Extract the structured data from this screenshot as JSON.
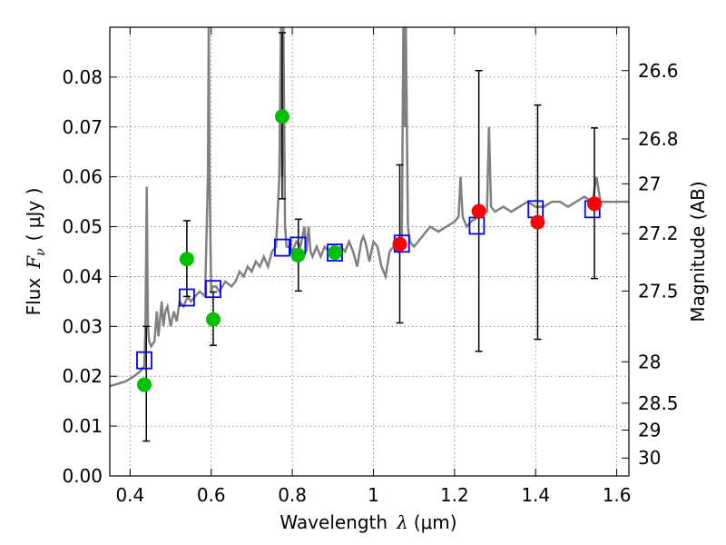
{
  "chart_data": {
    "type": "scatter",
    "xlabel_prefix": "Wavelength",
    "xlabel_symbol": "λ",
    "xlabel_unit": "(μm)",
    "ylabel_prefix": "Flux",
    "ylabel_symbol": "F",
    "ylabel_sub": "ν",
    "ylabel_unit": "( μJy )",
    "y2label": "Magnitude (AB)",
    "xlim": [
      0.35,
      1.63
    ],
    "ylim": [
      0.0,
      0.09
    ],
    "x_ticks": [
      {
        "value": 0.4,
        "label": "0.4"
      },
      {
        "value": 0.6,
        "label": "0.6"
      },
      {
        "value": 0.8,
        "label": "0.8"
      },
      {
        "value": 1.0,
        "label": "1"
      },
      {
        "value": 1.2,
        "label": "1.2"
      },
      {
        "value": 1.4,
        "label": "1.4"
      },
      {
        "value": 1.6,
        "label": "1.6"
      }
    ],
    "y_ticks": [
      {
        "value": 0.0,
        "label": "0.00"
      },
      {
        "value": 0.01,
        "label": "0.01"
      },
      {
        "value": 0.02,
        "label": "0.02"
      },
      {
        "value": 0.03,
        "label": "0.03"
      },
      {
        "value": 0.04,
        "label": "0.04"
      },
      {
        "value": 0.05,
        "label": "0.05"
      },
      {
        "value": 0.06,
        "label": "0.06"
      },
      {
        "value": 0.07,
        "label": "0.07"
      },
      {
        "value": 0.08,
        "label": "0.08"
      }
    ],
    "mag_ticks": [
      {
        "flux": 0.0813,
        "label": "26.6"
      },
      {
        "flux": 0.0676,
        "label": "26.8"
      },
      {
        "flux": 0.0586,
        "label": "27"
      },
      {
        "flux": 0.0486,
        "label": "27.2"
      },
      {
        "flux": 0.0371,
        "label": "27.5"
      },
      {
        "flux": 0.0229,
        "label": "28"
      },
      {
        "flux": 0.0146,
        "label": "28.5"
      },
      {
        "flux": 0.0092,
        "label": "29"
      },
      {
        "flux": 0.0036,
        "label": "30"
      }
    ],
    "sed_color": "#808080",
    "sed_spectrum": {
      "x": [
        0.35,
        0.37,
        0.39,
        0.41,
        0.425,
        0.435,
        0.438,
        0.441,
        0.444,
        0.447,
        0.452,
        0.46,
        0.466,
        0.47,
        0.478,
        0.482,
        0.487,
        0.492,
        0.5,
        0.508,
        0.515,
        0.522,
        0.532,
        0.542,
        0.55,
        0.56,
        0.572,
        0.585,
        0.592,
        0.594,
        0.596,
        0.6,
        0.604,
        0.612,
        0.62,
        0.635,
        0.65,
        0.66,
        0.67,
        0.68,
        0.69,
        0.7,
        0.71,
        0.72,
        0.73,
        0.74,
        0.75,
        0.76,
        0.768,
        0.772,
        0.775,
        0.778,
        0.782,
        0.786,
        0.79,
        0.8,
        0.81,
        0.82,
        0.83,
        0.835,
        0.84,
        0.845,
        0.85,
        0.86,
        0.87,
        0.88,
        0.89,
        0.9,
        0.91,
        0.92,
        0.93,
        0.94,
        0.95,
        0.96,
        0.97,
        0.975,
        0.98,
        0.985,
        0.99,
        1.0,
        1.01,
        1.02,
        1.03,
        1.04,
        1.05,
        1.06,
        1.07,
        1.074,
        1.077,
        1.08,
        1.085,
        1.09,
        1.1,
        1.12,
        1.14,
        1.16,
        1.18,
        1.2,
        1.21,
        1.215,
        1.22,
        1.23,
        1.24,
        1.26,
        1.27,
        1.28,
        1.285,
        1.29,
        1.3,
        1.32,
        1.34,
        1.36,
        1.38,
        1.4,
        1.42,
        1.44,
        1.46,
        1.48,
        1.5,
        1.52,
        1.54,
        1.55,
        1.56,
        1.58,
        1.6,
        1.63
      ],
      "y": [
        0.018,
        0.0185,
        0.019,
        0.02,
        0.021,
        0.022,
        0.03,
        0.058,
        0.03,
        0.027,
        0.026,
        0.027,
        0.033,
        0.028,
        0.035,
        0.03,
        0.033,
        0.034,
        0.03,
        0.033,
        0.031,
        0.035,
        0.034,
        0.036,
        0.035,
        0.036,
        0.037,
        0.036,
        0.06,
        0.09,
        0.06,
        0.037,
        0.038,
        0.038,
        0.037,
        0.039,
        0.038,
        0.039,
        0.041,
        0.04,
        0.042,
        0.041,
        0.043,
        0.042,
        0.044,
        0.042,
        0.045,
        0.046,
        0.06,
        0.09,
        0.06,
        0.09,
        0.05,
        0.046,
        0.046,
        0.045,
        0.047,
        0.046,
        0.05,
        0.045,
        0.05,
        0.045,
        0.044,
        0.046,
        0.044,
        0.046,
        0.045,
        0.046,
        0.045,
        0.046,
        0.045,
        0.047,
        0.045,
        0.042,
        0.047,
        0.048,
        0.047,
        0.045,
        0.043,
        0.047,
        0.046,
        0.042,
        0.04,
        0.045,
        0.046,
        0.045,
        0.048,
        0.09,
        0.07,
        0.09,
        0.05,
        0.047,
        0.046,
        0.048,
        0.05,
        0.049,
        0.05,
        0.051,
        0.052,
        0.06,
        0.052,
        0.05,
        0.051,
        0.052,
        0.053,
        0.053,
        0.07,
        0.054,
        0.053,
        0.054,
        0.053,
        0.054,
        0.055,
        0.054,
        0.054,
        0.055,
        0.055,
        0.054,
        0.055,
        0.056,
        0.055,
        0.06,
        0.055,
        0.055,
        0.055,
        0.055
      ]
    },
    "series": [
      {
        "name": "model_boxes",
        "marker": "square",
        "color": "#0000ff",
        "points": [
          {
            "x": 0.435,
            "y": 0.0232
          },
          {
            "x": 0.54,
            "y": 0.0358
          },
          {
            "x": 0.605,
            "y": 0.0375
          },
          {
            "x": 0.775,
            "y": 0.0458
          },
          {
            "x": 0.814,
            "y": 0.0462
          },
          {
            "x": 0.905,
            "y": 0.0448
          },
          {
            "x": 1.07,
            "y": 0.0466
          },
          {
            "x": 1.255,
            "y": 0.0502
          },
          {
            "x": 1.4,
            "y": 0.0535
          },
          {
            "x": 1.54,
            "y": 0.0535
          }
        ]
      },
      {
        "name": "observed_optical",
        "marker": "circle",
        "color": "#00c000",
        "points": [
          {
            "x": 0.435,
            "y": 0.0183
          },
          {
            "x": 0.54,
            "y": 0.0435
          },
          {
            "x": 0.605,
            "y": 0.0314
          },
          {
            "x": 0.775,
            "y": 0.0721
          },
          {
            "x": 0.814,
            "y": 0.0443
          },
          {
            "x": 0.905,
            "y": 0.0448
          }
        ]
      },
      {
        "name": "observed_nir",
        "marker": "circle",
        "color": "#ff0000",
        "points": [
          {
            "x": 1.065,
            "y": 0.0465
          },
          {
            "x": 1.26,
            "y": 0.0531
          },
          {
            "x": 1.405,
            "y": 0.0509
          },
          {
            "x": 1.545,
            "y": 0.0546
          }
        ]
      }
    ],
    "error_bars": [
      {
        "x": 0.44,
        "low": 0.007,
        "high": 0.03
      },
      {
        "x": 0.54,
        "low": 0.036,
        "high": 0.0512
      },
      {
        "x": 0.605,
        "low": 0.0262,
        "high": 0.0369
      },
      {
        "x": 0.775,
        "low": 0.0556,
        "high": 0.0889
      },
      {
        "x": 0.815,
        "low": 0.0371,
        "high": 0.0515
      },
      {
        "x": 1.065,
        "low": 0.0307,
        "high": 0.0624
      },
      {
        "x": 1.26,
        "low": 0.025,
        "high": 0.0813
      },
      {
        "x": 1.405,
        "low": 0.0274,
        "high": 0.0744
      },
      {
        "x": 1.545,
        "low": 0.0396,
        "high": 0.0698
      }
    ]
  }
}
